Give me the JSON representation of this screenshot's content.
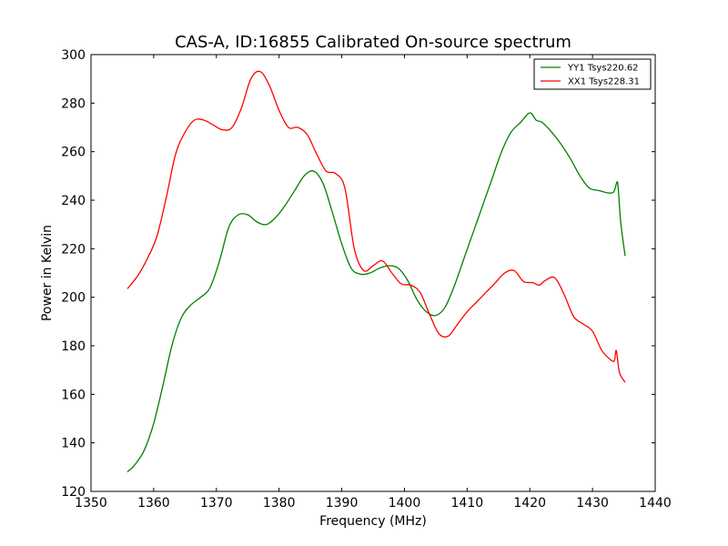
{
  "chart_data": {
    "type": "line",
    "title": "CAS-A, ID:16855 Calibrated On-source spectrum",
    "xlabel": "Frequency (MHz)",
    "ylabel": "Power in Kelvin",
    "xlim": [
      1350,
      1440
    ],
    "ylim": [
      120,
      300
    ],
    "xticks": [
      1350,
      1360,
      1370,
      1380,
      1390,
      1400,
      1410,
      1420,
      1430,
      1440
    ],
    "yticks": [
      120,
      140,
      160,
      180,
      200,
      220,
      240,
      260,
      280,
      300
    ],
    "xtick_labels": [
      "1350",
      "1360",
      "1370",
      "1380",
      "1390",
      "1400",
      "1410",
      "1420",
      "1430",
      "1440"
    ],
    "ytick_labels": [
      "120",
      "140",
      "160",
      "180",
      "200",
      "220",
      "240",
      "260",
      "280",
      "300"
    ],
    "grid": false,
    "legend_position": "top-right",
    "series": [
      {
        "name": "YY1 Tsys220.62",
        "color": "#008000",
        "x": [
          1355.8,
          1357,
          1358.5,
          1360,
          1361.5,
          1363,
          1364.5,
          1366,
          1367.5,
          1369,
          1370.5,
          1372,
          1373.5,
          1375,
          1376.5,
          1378,
          1379.5,
          1381,
          1382.5,
          1384,
          1385.5,
          1387,
          1388.5,
          1390,
          1391.5,
          1393,
          1394.5,
          1396,
          1397.5,
          1399,
          1400.5,
          1402,
          1403.5,
          1405,
          1406.5,
          1408,
          1409.5,
          1411,
          1412.5,
          1414,
          1415.5,
          1417,
          1418.5,
          1420,
          1421,
          1422,
          1423.5,
          1425,
          1426.5,
          1428,
          1429.5,
          1431,
          1432.5,
          1433.4,
          1433.9,
          1434.1,
          1434.5,
          1435.2
        ],
        "values": [
          128,
          131,
          137,
          148,
          164,
          181,
          192,
          197,
          200,
          204,
          215,
          229,
          234,
          234,
          231,
          230,
          233,
          238,
          244,
          250,
          252,
          247,
          235,
          222,
          212,
          209.5,
          210,
          212,
          213,
          212,
          207,
          199,
          194,
          192.5,
          196,
          205,
          216,
          227,
          238,
          249,
          260,
          268,
          272,
          276,
          273,
          272,
          268,
          263,
          257,
          250,
          245,
          244,
          243,
          243.5,
          247.5,
          245,
          231,
          217
        ]
      },
      {
        "name": "XX1 Tsys228.31",
        "color": "#ff0000",
        "x": [
          1355.8,
          1357.5,
          1359,
          1360.5,
          1362,
          1363.5,
          1365,
          1366.5,
          1368,
          1369.5,
          1371,
          1372.5,
          1374,
          1375.5,
          1377,
          1378.5,
          1380,
          1381.5,
          1383,
          1384.5,
          1386,
          1387.5,
          1389,
          1390.5,
          1392,
          1393.5,
          1395,
          1396.5,
          1398,
          1399.5,
          1401,
          1402.5,
          1404,
          1405.5,
          1407,
          1408.5,
          1410,
          1411.5,
          1413,
          1414.5,
          1416,
          1417.5,
          1419,
          1420.5,
          1421.5,
          1422.5,
          1424,
          1425.5,
          1427,
          1428.5,
          1430,
          1431.5,
          1433,
          1433.5,
          1433.8,
          1434.3,
          1435.2
        ],
        "values": [
          203.5,
          209,
          216,
          225,
          241,
          259,
          268,
          273,
          273,
          271,
          269,
          270,
          278,
          290,
          293,
          287,
          277,
          270,
          270,
          267,
          259,
          252,
          251,
          245,
          220,
          211,
          213,
          215,
          210,
          205.5,
          205,
          202,
          193,
          185,
          184,
          189,
          194,
          198,
          202,
          206,
          210,
          211,
          206.5,
          206,
          205,
          207,
          208,
          201,
          192,
          189,
          186,
          178,
          174,
          174,
          178,
          169,
          165
        ]
      }
    ]
  }
}
